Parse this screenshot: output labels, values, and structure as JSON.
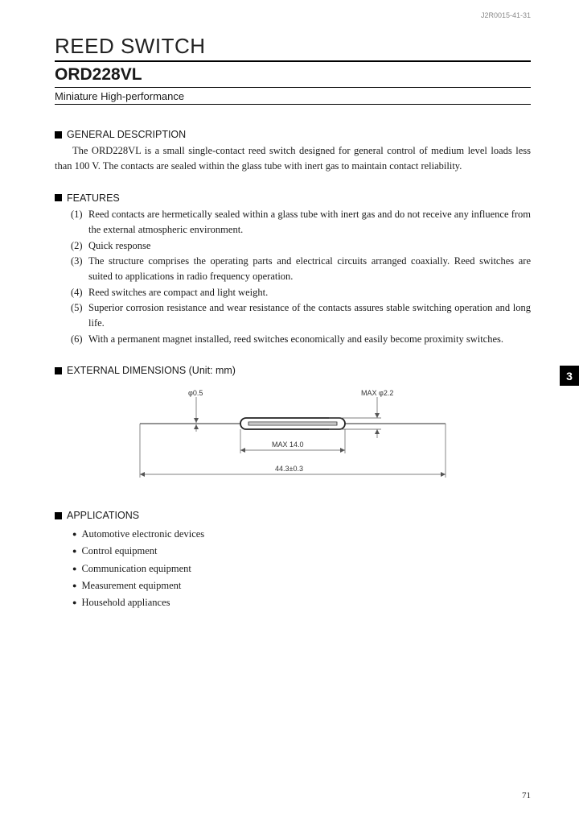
{
  "doc_code": "J2R0015-41-31",
  "main_title": "REED SWITCH",
  "part_number": "ORD228VL",
  "subtitle": "Miniature High-performance",
  "side_tab": "3",
  "page_number": "71",
  "sections": {
    "general": {
      "heading": "GENERAL DESCRIPTION",
      "body": "The ORD228VL is a small single-contact reed switch designed for general control of medium level loads less than 100 V. The contacts are sealed within the glass tube with inert gas to maintain contact reliability."
    },
    "features": {
      "heading": "FEATURES",
      "items": [
        "Reed contacts are hermetically sealed within a glass tube with inert gas and do not receive any influence from the external atmospheric environment.",
        "Quick response",
        "The structure comprises the operating parts and electrical circuits arranged coaxially. Reed switches are suited to applications in radio frequency operation.",
        "Reed switches are compact and light weight.",
        "Superior corrosion resistance and wear resistance of the contacts assures stable switching operation and long life.",
        "With a permanent magnet installed, reed switches economically and easily become proximity switches."
      ]
    },
    "dimensions": {
      "heading": "EXTERNAL DIMENSIONS (Unit: mm)",
      "labels": {
        "lead_dia": "φ0.5",
        "tube_dia": "MAX  φ2.2",
        "tube_len": "MAX   14.0",
        "total_len": "44.3±0.3"
      },
      "style": {
        "stroke": "#555555",
        "stroke_thin": 0.7,
        "stroke_body": 1.8,
        "fill_body": "#333333"
      }
    },
    "applications": {
      "heading": "APPLICATIONS",
      "items": [
        "Automotive electronic devices",
        "Control equipment",
        "Communication equipment",
        "Measurement equipment",
        "Household appliances"
      ]
    }
  }
}
